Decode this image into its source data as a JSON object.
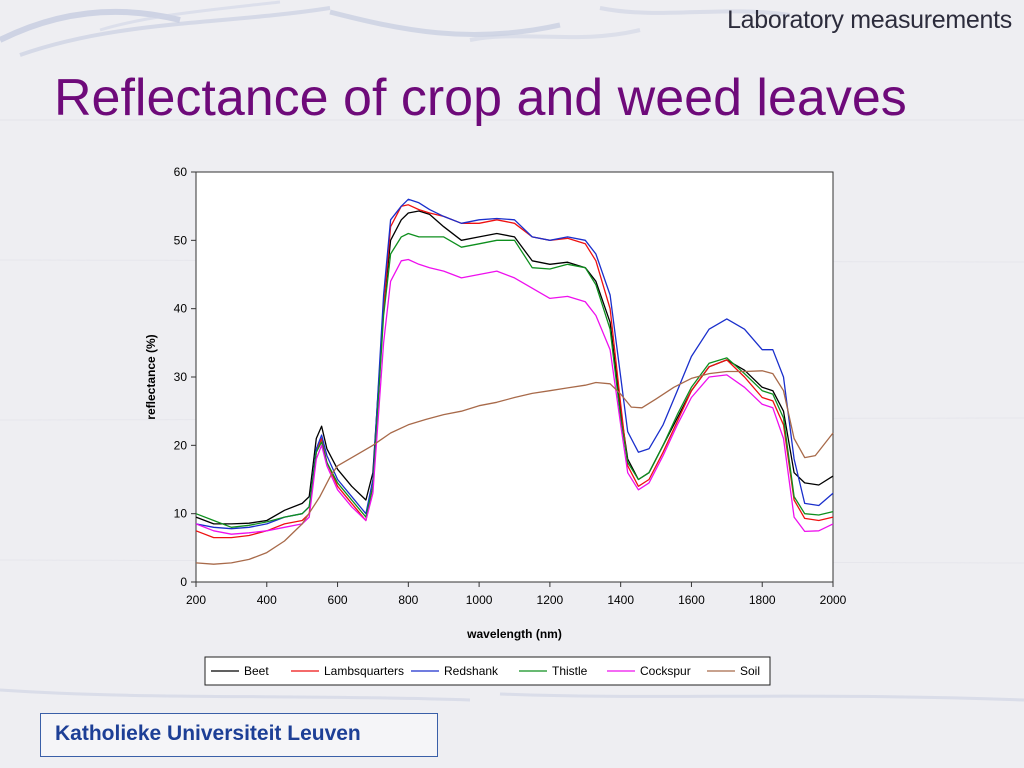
{
  "slide": {
    "header_label": "Laboratory measurements",
    "title": "Reflectance of crop and weed leaves",
    "footer": "Katholieke Universiteit Leuven"
  },
  "chart_data": {
    "type": "line",
    "title": "",
    "xlabel": "wavelength (nm)",
    "ylabel": "reflectance (%)",
    "xlim": [
      200,
      2000
    ],
    "ylim": [
      0,
      60
    ],
    "xticks": [
      200,
      400,
      600,
      800,
      1000,
      1200,
      1400,
      1600,
      1800,
      2000
    ],
    "yticks": [
      0,
      10,
      20,
      30,
      40,
      50,
      60
    ],
    "grid": false,
    "legend_position": "bottom",
    "series": [
      {
        "name": "Beet",
        "color": "#000000",
        "points": [
          [
            200,
            9.5
          ],
          [
            250,
            8.5
          ],
          [
            300,
            8.5
          ],
          [
            350,
            8.6
          ],
          [
            400,
            9
          ],
          [
            450,
            10.5
          ],
          [
            500,
            11.5
          ],
          [
            520,
            12.5
          ],
          [
            540,
            21
          ],
          [
            555,
            22.8
          ],
          [
            570,
            19.5
          ],
          [
            600,
            16.5
          ],
          [
            640,
            14
          ],
          [
            680,
            12
          ],
          [
            700,
            16
          ],
          [
            730,
            40
          ],
          [
            750,
            50
          ],
          [
            780,
            53
          ],
          [
            800,
            54
          ],
          [
            830,
            54.3
          ],
          [
            860,
            53.8
          ],
          [
            900,
            52
          ],
          [
            950,
            50
          ],
          [
            1000,
            50.5
          ],
          [
            1050,
            51
          ],
          [
            1100,
            50.5
          ],
          [
            1150,
            47
          ],
          [
            1200,
            46.5
          ],
          [
            1250,
            46.8
          ],
          [
            1300,
            46
          ],
          [
            1330,
            44
          ],
          [
            1370,
            38
          ],
          [
            1400,
            25
          ],
          [
            1420,
            18
          ],
          [
            1450,
            15
          ],
          [
            1480,
            16
          ],
          [
            1520,
            20
          ],
          [
            1560,
            24
          ],
          [
            1600,
            28
          ],
          [
            1650,
            31.5
          ],
          [
            1700,
            32.5
          ],
          [
            1750,
            31
          ],
          [
            1800,
            28.5
          ],
          [
            1830,
            28
          ],
          [
            1860,
            25
          ],
          [
            1890,
            16
          ],
          [
            1920,
            14.5
          ],
          [
            1960,
            14.2
          ],
          [
            2000,
            15.5
          ]
        ]
      },
      {
        "name": "Lambsquarters",
        "color": "#ee1111",
        "points": [
          [
            200,
            7.5
          ],
          [
            250,
            6.5
          ],
          [
            300,
            6.5
          ],
          [
            350,
            6.8
          ],
          [
            400,
            7.5
          ],
          [
            450,
            8.5
          ],
          [
            500,
            9
          ],
          [
            520,
            10
          ],
          [
            540,
            19
          ],
          [
            555,
            21
          ],
          [
            570,
            17.5
          ],
          [
            600,
            14
          ],
          [
            640,
            11.5
          ],
          [
            680,
            9
          ],
          [
            700,
            14
          ],
          [
            730,
            40
          ],
          [
            750,
            52
          ],
          [
            780,
            55
          ],
          [
            800,
            55.2
          ],
          [
            830,
            54.5
          ],
          [
            860,
            54
          ],
          [
            900,
            53.5
          ],
          [
            950,
            52.5
          ],
          [
            1000,
            52.5
          ],
          [
            1050,
            53
          ],
          [
            1100,
            52.5
          ],
          [
            1150,
            50.5
          ],
          [
            1200,
            50
          ],
          [
            1250,
            50.3
          ],
          [
            1300,
            49.5
          ],
          [
            1330,
            47
          ],
          [
            1370,
            40
          ],
          [
            1400,
            26
          ],
          [
            1420,
            17
          ],
          [
            1450,
            14
          ],
          [
            1480,
            15
          ],
          [
            1520,
            19
          ],
          [
            1560,
            23.5
          ],
          [
            1600,
            28
          ],
          [
            1650,
            31.5
          ],
          [
            1700,
            32.5
          ],
          [
            1750,
            30
          ],
          [
            1800,
            27
          ],
          [
            1830,
            26.5
          ],
          [
            1860,
            23
          ],
          [
            1890,
            12
          ],
          [
            1920,
            9.3
          ],
          [
            1960,
            9
          ],
          [
            2000,
            9.5
          ]
        ]
      },
      {
        "name": "Redshank",
        "color": "#1a2fcc",
        "points": [
          [
            200,
            8.5
          ],
          [
            250,
            8
          ],
          [
            300,
            7.8
          ],
          [
            350,
            8
          ],
          [
            400,
            8.5
          ],
          [
            450,
            9.5
          ],
          [
            500,
            10
          ],
          [
            520,
            11
          ],
          [
            540,
            19.5
          ],
          [
            555,
            21.5
          ],
          [
            570,
            18.5
          ],
          [
            600,
            15
          ],
          [
            640,
            12.5
          ],
          [
            680,
            10
          ],
          [
            700,
            15
          ],
          [
            730,
            42
          ],
          [
            750,
            53
          ],
          [
            780,
            55
          ],
          [
            800,
            56
          ],
          [
            830,
            55.5
          ],
          [
            860,
            54.5
          ],
          [
            900,
            53.5
          ],
          [
            950,
            52.5
          ],
          [
            1000,
            53
          ],
          [
            1050,
            53.2
          ],
          [
            1100,
            53
          ],
          [
            1150,
            50.5
          ],
          [
            1200,
            50
          ],
          [
            1250,
            50.5
          ],
          [
            1300,
            50
          ],
          [
            1330,
            48
          ],
          [
            1370,
            42
          ],
          [
            1400,
            30
          ],
          [
            1420,
            22
          ],
          [
            1450,
            19
          ],
          [
            1480,
            19.5
          ],
          [
            1520,
            23
          ],
          [
            1560,
            28
          ],
          [
            1600,
            33
          ],
          [
            1650,
            37
          ],
          [
            1700,
            38.5
          ],
          [
            1750,
            37
          ],
          [
            1800,
            34
          ],
          [
            1830,
            34
          ],
          [
            1860,
            30
          ],
          [
            1890,
            18
          ],
          [
            1920,
            11.5
          ],
          [
            1960,
            11.2
          ],
          [
            2000,
            13
          ]
        ]
      },
      {
        "name": "Thistle",
        "color": "#0e8f1e",
        "points": [
          [
            200,
            10
          ],
          [
            250,
            9
          ],
          [
            300,
            8
          ],
          [
            350,
            8.3
          ],
          [
            400,
            8.8
          ],
          [
            450,
            9.5
          ],
          [
            500,
            10
          ],
          [
            520,
            11
          ],
          [
            540,
            19
          ],
          [
            555,
            20.5
          ],
          [
            570,
            17.5
          ],
          [
            600,
            14.5
          ],
          [
            640,
            12
          ],
          [
            680,
            9.5
          ],
          [
            700,
            14
          ],
          [
            730,
            39
          ],
          [
            750,
            48
          ],
          [
            780,
            50.5
          ],
          [
            800,
            51
          ],
          [
            830,
            50.5
          ],
          [
            860,
            50.5
          ],
          [
            900,
            50.5
          ],
          [
            950,
            49
          ],
          [
            1000,
            49.5
          ],
          [
            1050,
            50
          ],
          [
            1100,
            50
          ],
          [
            1150,
            46
          ],
          [
            1200,
            45.8
          ],
          [
            1250,
            46.5
          ],
          [
            1300,
            46
          ],
          [
            1330,
            43.5
          ],
          [
            1370,
            37
          ],
          [
            1400,
            24
          ],
          [
            1420,
            17.5
          ],
          [
            1450,
            15
          ],
          [
            1480,
            16
          ],
          [
            1520,
            20
          ],
          [
            1560,
            24.5
          ],
          [
            1600,
            28.5
          ],
          [
            1650,
            32
          ],
          [
            1700,
            32.8
          ],
          [
            1750,
            30.5
          ],
          [
            1800,
            28
          ],
          [
            1830,
            27.5
          ],
          [
            1860,
            24
          ],
          [
            1890,
            12.5
          ],
          [
            1920,
            10
          ],
          [
            1960,
            9.8
          ],
          [
            2000,
            10.3
          ]
        ]
      },
      {
        "name": "Cockspur",
        "color": "#ee10ee",
        "points": [
          [
            200,
            8.5
          ],
          [
            250,
            7.5
          ],
          [
            300,
            7
          ],
          [
            350,
            7.2
          ],
          [
            400,
            7.5
          ],
          [
            450,
            8
          ],
          [
            500,
            8.5
          ],
          [
            520,
            9.5
          ],
          [
            540,
            18
          ],
          [
            555,
            20
          ],
          [
            570,
            17
          ],
          [
            600,
            13.5
          ],
          [
            640,
            11
          ],
          [
            680,
            9
          ],
          [
            700,
            13
          ],
          [
            730,
            35
          ],
          [
            750,
            44
          ],
          [
            780,
            47
          ],
          [
            800,
            47.2
          ],
          [
            830,
            46.5
          ],
          [
            860,
            46
          ],
          [
            900,
            45.5
          ],
          [
            950,
            44.5
          ],
          [
            1000,
            45
          ],
          [
            1050,
            45.5
          ],
          [
            1100,
            44.5
          ],
          [
            1150,
            43
          ],
          [
            1200,
            41.5
          ],
          [
            1250,
            41.8
          ],
          [
            1300,
            41
          ],
          [
            1330,
            39
          ],
          [
            1370,
            34
          ],
          [
            1400,
            23
          ],
          [
            1420,
            16
          ],
          [
            1450,
            13.5
          ],
          [
            1480,
            14.5
          ],
          [
            1520,
            18.5
          ],
          [
            1560,
            23
          ],
          [
            1600,
            27
          ],
          [
            1650,
            30
          ],
          [
            1700,
            30.3
          ],
          [
            1750,
            28.5
          ],
          [
            1800,
            26
          ],
          [
            1830,
            25.5
          ],
          [
            1860,
            21
          ],
          [
            1890,
            9.5
          ],
          [
            1920,
            7.4
          ],
          [
            1960,
            7.5
          ],
          [
            2000,
            8.5
          ]
        ]
      },
      {
        "name": "Soil",
        "color": "#a86a4a",
        "points": [
          [
            200,
            2.8
          ],
          [
            250,
            2.6
          ],
          [
            300,
            2.8
          ],
          [
            350,
            3.3
          ],
          [
            400,
            4.3
          ],
          [
            450,
            6
          ],
          [
            500,
            8.5
          ],
          [
            550,
            12.5
          ],
          [
            580,
            15.5
          ],
          [
            600,
            17
          ],
          [
            650,
            18.5
          ],
          [
            700,
            20
          ],
          [
            750,
            21.8
          ],
          [
            800,
            23
          ],
          [
            850,
            23.8
          ],
          [
            900,
            24.5
          ],
          [
            950,
            25
          ],
          [
            1000,
            25.8
          ],
          [
            1050,
            26.3
          ],
          [
            1100,
            27
          ],
          [
            1150,
            27.6
          ],
          [
            1200,
            28
          ],
          [
            1250,
            28.4
          ],
          [
            1300,
            28.8
          ],
          [
            1330,
            29.2
          ],
          [
            1370,
            29
          ],
          [
            1400,
            27.5
          ],
          [
            1430,
            25.6
          ],
          [
            1460,
            25.5
          ],
          [
            1500,
            26.8
          ],
          [
            1550,
            28.5
          ],
          [
            1600,
            29.8
          ],
          [
            1650,
            30.5
          ],
          [
            1700,
            30.8
          ],
          [
            1750,
            30.8
          ],
          [
            1800,
            30.9
          ],
          [
            1830,
            30.5
          ],
          [
            1860,
            28
          ],
          [
            1890,
            21
          ],
          [
            1920,
            18.2
          ],
          [
            1950,
            18.5
          ],
          [
            2000,
            21.8
          ]
        ]
      }
    ]
  }
}
